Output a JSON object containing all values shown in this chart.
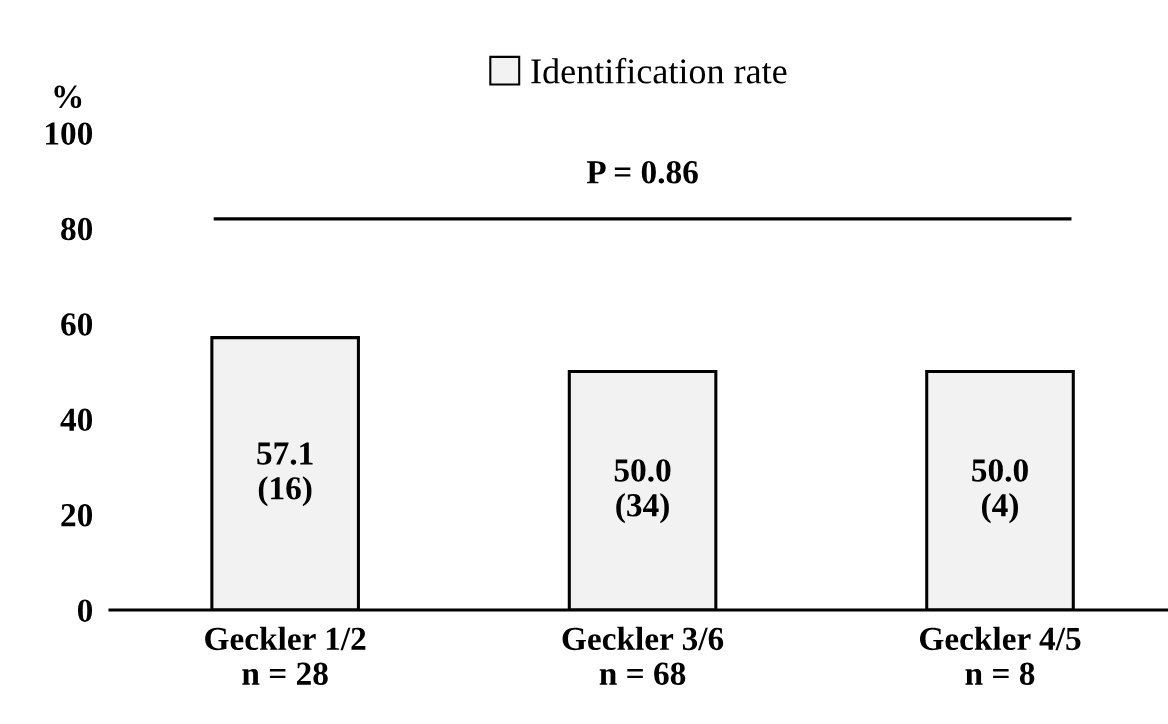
{
  "chart_data": {
    "type": "bar",
    "ylabel": "%",
    "categories": [
      "Geckler 1/2\nn = 28",
      "Geckler 3/6\nn = 68",
      "Geckler 4/5\nn = 8"
    ],
    "series": [
      {
        "name": "Identification rate",
        "color": "#f2f2f2",
        "values": [
          57.1,
          50.0,
          50.0
        ],
        "value_labels": [
          "57.1\n(16)",
          "50.0\n(34)",
          "50.0\n(4)"
        ]
      }
    ],
    "ylim": [
      0,
      100
    ],
    "yticks": [
      0,
      20,
      40,
      60,
      80,
      100
    ],
    "ref_lines": [
      {
        "axis": "y",
        "value": 82,
        "color": "#000000"
      }
    ],
    "annotations": [
      "P = 0.86"
    ],
    "legend": "top",
    "grid": false
  }
}
